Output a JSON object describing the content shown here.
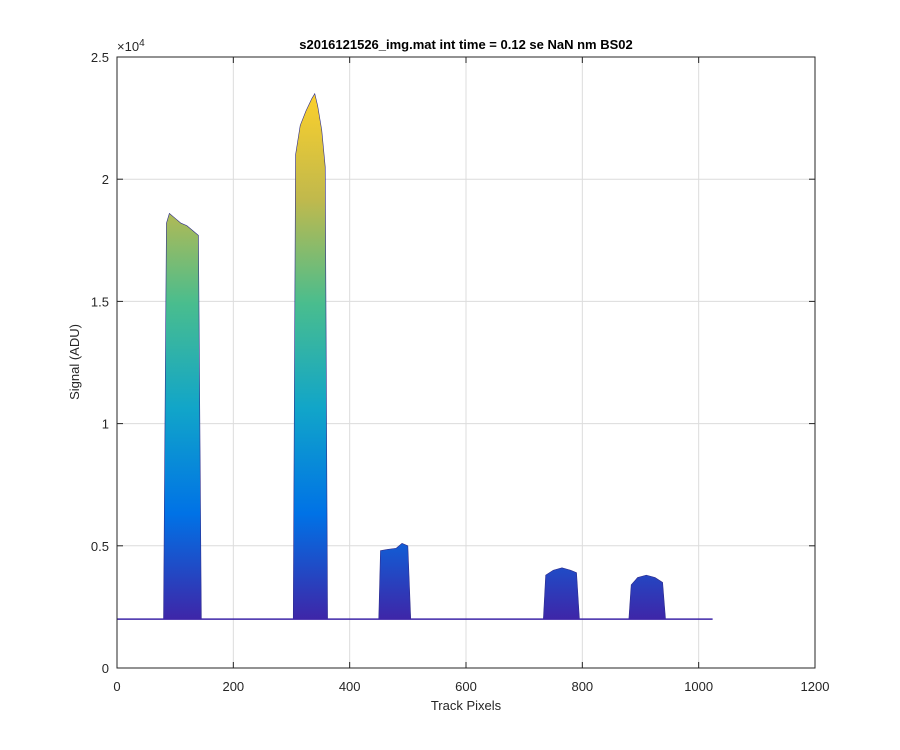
{
  "chart_data": {
    "type": "area",
    "title": "s2016121526_img.mat int time = 0.12 se  NaN nm BS02",
    "xlabel": "Track Pixels",
    "ylabel": "Signal (ADU)",
    "xlim": [
      0,
      1200
    ],
    "ylim": [
      0,
      25000
    ],
    "x_ticks": [
      0,
      200,
      400,
      600,
      800,
      1000,
      1200
    ],
    "y_ticks": [
      0,
      5000,
      10000,
      15000,
      20000,
      25000
    ],
    "y_tick_labels": [
      "0",
      "0.5",
      "1",
      "1.5",
      "2",
      "2.5"
    ],
    "y_exponent_label": "×10",
    "y_exponent_power": "4",
    "grid": true,
    "baseline": 2000,
    "baseline_x_range": [
      0,
      1024
    ],
    "colormap": [
      "#3e26a8",
      "#0072e6",
      "#11a5c9",
      "#49bd8e",
      "#c1b94c",
      "#fcd02b"
    ],
    "series": [
      {
        "x": [
          80,
          85,
          90,
          100,
          110,
          120,
          130,
          140,
          145
        ],
        "values": [
          2000,
          18200,
          18600,
          18400,
          18200,
          18100,
          17900,
          17700,
          2000
        ]
      },
      {
        "x": [
          303,
          307,
          315,
          325,
          335,
          340,
          345,
          352,
          358,
          362
        ],
        "values": [
          2000,
          21000,
          22200,
          22800,
          23300,
          23500,
          23000,
          22000,
          20500,
          2000
        ]
      },
      {
        "x": [
          450,
          453,
          465,
          480,
          490,
          500,
          505
        ],
        "values": [
          2000,
          4800,
          4850,
          4900,
          5100,
          5000,
          2000
        ]
      },
      {
        "x": [
          733,
          737,
          750,
          765,
          780,
          790,
          795
        ],
        "values": [
          2000,
          3800,
          4000,
          4100,
          4000,
          3900,
          2000
        ]
      },
      {
        "x": [
          880,
          884,
          895,
          910,
          925,
          938,
          943
        ],
        "values": [
          2000,
          3400,
          3700,
          3800,
          3700,
          3500,
          2000
        ]
      }
    ]
  }
}
